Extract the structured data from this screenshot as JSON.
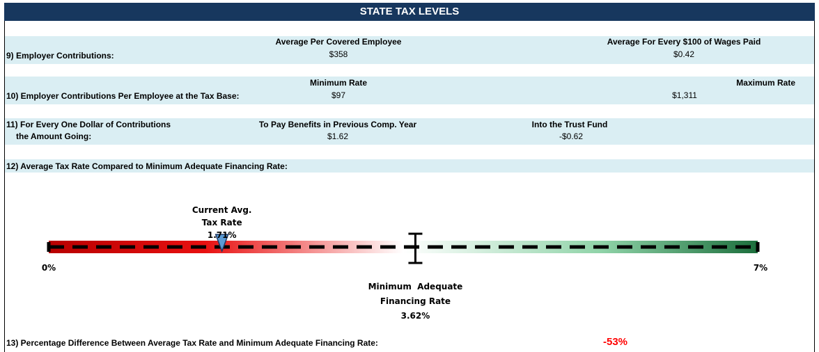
{
  "header": {
    "title": "STATE TAX LEVELS"
  },
  "rows": [
    {
      "label": "9) Employer Contributions:",
      "columns": [
        {
          "heading": "Average Per Covered Employee",
          "value": "$358"
        },
        {
          "heading": "Average For Every $100 of Wages Paid",
          "value": "$0.42"
        }
      ]
    },
    {
      "label": "10) Employer Contributions Per Employee at the Tax Base:",
      "columns": [
        {
          "heading": "Minimum Rate",
          "value": "$97"
        },
        {
          "heading": "Maximum Rate",
          "value": "$1,311"
        }
      ]
    },
    {
      "label_lines": [
        "11) For Every One Dollar of Contributions",
        "the Amount Going:"
      ],
      "columns": [
        {
          "heading": "To Pay Benefits in Previous Comp. Year",
          "value": "$1.62"
        },
        {
          "heading": "Into the Trust Fund",
          "value": "-$0.62"
        }
      ]
    },
    {
      "label": "12) Average Tax Rate Compared to Minimum Adequate Financing Rate:"
    }
  ],
  "gauge": {
    "min": {
      "value": 0,
      "label": "0%"
    },
    "max": {
      "value": 7,
      "label": "7%"
    },
    "current": {
      "title_lines": [
        "Current Avg.",
        "Tax Rate"
      ],
      "value": 1.71,
      "value_label": "1.71%"
    },
    "minimum_adequate": {
      "title_lines": [
        "Minimum  Adequate",
        "Financing Rate"
      ],
      "value": 3.62,
      "value_label": "3.62%"
    }
  },
  "footer": {
    "label": "13) Percentage Difference Between Average Tax Rate and Minimum Adequate Financing Rate:",
    "value_label": "-53%"
  }
}
